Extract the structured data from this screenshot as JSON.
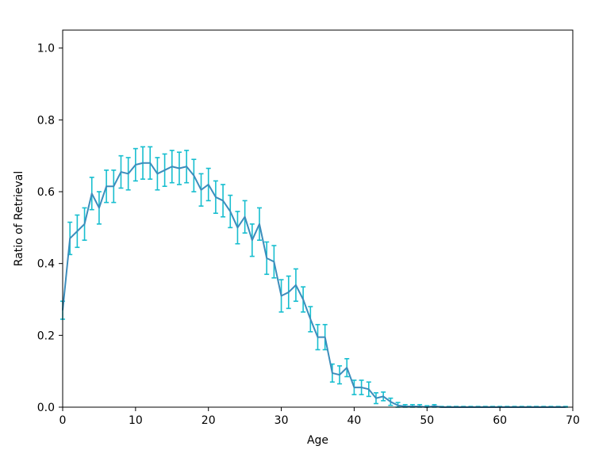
{
  "chart_data": {
    "type": "line",
    "xlabel": "Age",
    "ylabel": "Ratio of Retrieval",
    "xlim": [
      0,
      70
    ],
    "ylim": [
      0.0,
      1.05
    ],
    "x_ticks": [
      0,
      10,
      20,
      30,
      40,
      50,
      60,
      70
    ],
    "y_ticks": [
      0.0,
      0.2,
      0.4,
      0.6,
      0.8,
      1.0
    ],
    "x_tick_labels": [
      "0",
      "10",
      "20",
      "30",
      "40",
      "50",
      "60",
      "70"
    ],
    "y_tick_labels": [
      "0.0",
      "0.2",
      "0.4",
      "0.6",
      "0.8",
      "1.0"
    ],
    "grid": false,
    "line_color": "#3c8dbc",
    "errorbar_color": "#17becf",
    "x": [
      0,
      1,
      2,
      3,
      4,
      5,
      6,
      7,
      8,
      9,
      10,
      11,
      12,
      13,
      14,
      15,
      16,
      17,
      18,
      19,
      20,
      21,
      22,
      23,
      24,
      25,
      26,
      27,
      28,
      29,
      30,
      31,
      32,
      33,
      34,
      35,
      36,
      37,
      38,
      39,
      40,
      41,
      42,
      43,
      44,
      45,
      46,
      47,
      48,
      49,
      50,
      51,
      52,
      53,
      54,
      55,
      56,
      57,
      58,
      59,
      60,
      61,
      62,
      63,
      64,
      65,
      66,
      67,
      68,
      69
    ],
    "y": [
      0.27,
      0.47,
      0.49,
      0.51,
      0.595,
      0.555,
      0.615,
      0.615,
      0.655,
      0.65,
      0.675,
      0.68,
      0.68,
      0.65,
      0.66,
      0.67,
      0.665,
      0.67,
      0.645,
      0.605,
      0.62,
      0.585,
      0.575,
      0.545,
      0.5,
      0.53,
      0.465,
      0.51,
      0.415,
      0.405,
      0.31,
      0.32,
      0.34,
      0.3,
      0.245,
      0.195,
      0.195,
      0.095,
      0.09,
      0.11,
      0.055,
      0.055,
      0.05,
      0.025,
      0.03,
      0.015,
      0.005,
      0.002,
      0.002,
      0.002,
      0.0,
      0.003,
      0.0,
      0.0,
      0.0,
      0.0,
      0.0,
      0.0,
      0.0,
      0.0,
      0.0,
      0.0,
      0.0,
      0.0,
      0.0,
      0.0,
      0.0,
      0.0,
      0.0,
      0.0
    ],
    "yerr": [
      0.025,
      0.045,
      0.045,
      0.045,
      0.045,
      0.045,
      0.045,
      0.045,
      0.045,
      0.045,
      0.045,
      0.045,
      0.045,
      0.045,
      0.045,
      0.045,
      0.045,
      0.045,
      0.045,
      0.045,
      0.045,
      0.045,
      0.045,
      0.045,
      0.045,
      0.045,
      0.045,
      0.045,
      0.045,
      0.045,
      0.045,
      0.045,
      0.045,
      0.035,
      0.035,
      0.035,
      0.035,
      0.025,
      0.025,
      0.025,
      0.02,
      0.02,
      0.02,
      0.015,
      0.012,
      0.01,
      0.008,
      0.005,
      0.005,
      0.005,
      0.004,
      0.004,
      0.002,
      0.002,
      0.002,
      0.002,
      0.002,
      0.002,
      0.002,
      0.002,
      0.002,
      0.002,
      0.002,
      0.002,
      0.002,
      0.002,
      0.002,
      0.002,
      0.002,
      0.002
    ]
  }
}
